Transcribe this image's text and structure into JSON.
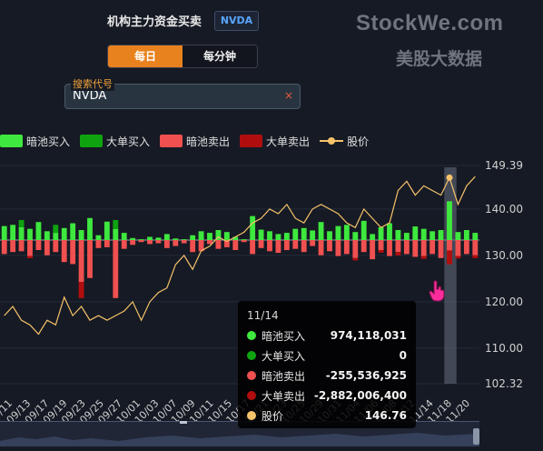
{
  "header": {
    "title": "机构主力资金买卖",
    "ticker": "NVDA"
  },
  "brand": {
    "name": "StockWe.com",
    "subtitle": "美股大数据"
  },
  "toggle": {
    "options": [
      {
        "label": "每日",
        "active": true
      },
      {
        "label": "每分钟",
        "active": false
      }
    ]
  },
  "search": {
    "label": "搜索代号",
    "value": "NVDA",
    "clear": "×"
  },
  "legend": [
    {
      "name": "暗池买入",
      "color": "#3ee83e"
    },
    {
      "name": "大单买入",
      "color": "#0fa40f"
    },
    {
      "name": "暗池卖出",
      "color": "#f05050"
    },
    {
      "name": "大单卖出",
      "color": "#b00e0e"
    },
    {
      "name": "股价",
      "color": "#f7c36a"
    }
  ],
  "colors": {
    "dark_buy": "#3ee83e",
    "block_buy": "#0fa40f",
    "dark_sell": "#f05050",
    "block_sell": "#b00e0e",
    "price": "#f7c36a",
    "highlight": "#6a7080"
  },
  "chart_data": {
    "type": "bar",
    "y_axis_ticks": [
      "149.39",
      "140.00",
      "130.00",
      "120.00",
      "110.00",
      "102.32"
    ],
    "y_axis_range": [
      102.32,
      149.39
    ],
    "x_tick_labels": [
      "09/11",
      "09/13",
      "09/17",
      "09/19",
      "09/23",
      "09/25",
      "09/27",
      "10/01",
      "10/03",
      "10/07",
      "10/09",
      "10/11",
      "10/15",
      "10/17",
      "10/21",
      "10/23",
      "10/25",
      "10/29",
      "10/31",
      "11/04",
      "11/06",
      "11/08",
      "11/12",
      "11/14",
      "11/18",
      "11/20"
    ],
    "highlighted": "11/14",
    "series": [
      {
        "name": "暗池买入",
        "values": [
          0.35,
          0.38,
          0.32,
          0.28,
          0.45,
          0.22,
          0.18,
          0.3,
          0.42,
          0.25,
          0.55,
          0.12,
          0.46,
          0.28,
          0.18,
          0.05,
          0.02,
          0.08,
          0.06,
          0.15,
          0.04,
          0.02,
          0.12,
          0.22,
          0.18,
          0.25,
          0.2,
          0.08,
          0.02,
          0.6,
          0.26,
          0.22,
          0.15,
          0.18,
          0.28,
          0.3,
          0.24,
          0.45,
          0.22,
          0.35,
          0.38,
          0.2,
          0.48,
          0.15,
          0.32,
          0.42,
          0.25,
          0.18,
          0.34,
          0.28,
          0.22,
          0.25,
          0.97,
          0.2,
          0.25,
          0.18
        ]
      },
      {
        "name": "大单买入",
        "values": [
          0.0,
          0.0,
          0.18,
          0.0,
          0.0,
          0.0,
          0.2,
          0.0,
          0.0,
          0.0,
          0.0,
          0.0,
          0.0,
          0.22,
          0.0,
          0.0,
          0.0,
          0.0,
          0.0,
          0.0,
          0.0,
          0.0,
          0.0,
          0.0,
          0.0,
          0.0,
          0.0,
          0.0,
          0.0,
          0.0,
          0.0,
          0.0,
          0.0,
          0.0,
          0.0,
          0.0,
          0.0,
          0.0,
          0.0,
          0.0,
          0.0,
          0.0,
          0.0,
          0.0,
          0.0,
          0.0,
          0.0,
          0.0,
          0.0,
          0.0,
          0.0,
          0.0,
          0.0,
          0.0,
          0.0,
          0.0
        ]
      },
      {
        "name": "暗池卖出",
        "values": [
          -0.35,
          -0.3,
          -0.28,
          -0.4,
          -0.25,
          -0.38,
          -0.3,
          -0.55,
          -0.6,
          -1.05,
          -0.95,
          -0.2,
          -0.18,
          -1.45,
          -0.22,
          -0.12,
          -0.05,
          -0.1,
          -0.08,
          -0.2,
          -0.15,
          -0.08,
          -0.3,
          -0.28,
          -0.1,
          -0.22,
          -0.18,
          -0.25,
          -0.05,
          -0.35,
          -0.2,
          -0.28,
          -0.32,
          -0.25,
          -0.22,
          -0.3,
          -0.15,
          -0.38,
          -0.28,
          -0.4,
          -0.35,
          -0.45,
          -0.3,
          -0.48,
          -0.25,
          -0.4,
          -0.3,
          -0.35,
          -0.42,
          -0.4,
          -0.35,
          -0.45,
          -0.26,
          -0.4,
          -0.35,
          -0.38
        ]
      },
      {
        "name": "大单卖出",
        "values": [
          0.0,
          0.0,
          0.0,
          -0.45,
          0.0,
          0.0,
          0.0,
          0.0,
          0.0,
          -3.35,
          0.0,
          0.0,
          0.0,
          0.0,
          0.0,
          0.0,
          0.0,
          0.0,
          0.0,
          0.0,
          0.0,
          0.0,
          0.0,
          0.0,
          0.0,
          0.0,
          0.0,
          0.0,
          0.0,
          0.0,
          0.0,
          0.0,
          0.0,
          0.0,
          0.0,
          0.0,
          0.0,
          0.0,
          0.0,
          0.0,
          0.0,
          -0.5,
          0.0,
          0.0,
          -0.55,
          0.0,
          -0.7,
          0.0,
          0.0,
          -0.6,
          0.0,
          0.0,
          -2.88,
          -0.5,
          0.0,
          -0.6
        ]
      },
      {
        "name": "股价",
        "values": [
          117,
          119,
          116,
          115,
          113,
          116,
          115,
          121,
          117,
          119,
          116,
          117,
          116,
          117,
          118,
          120,
          116,
          120,
          122,
          123,
          128,
          130,
          127,
          131,
          132,
          134,
          133,
          134,
          135,
          137,
          138,
          140,
          139,
          141,
          138,
          137,
          140,
          141,
          140,
          139,
          137,
          136,
          140,
          138,
          136,
          137,
          144,
          146,
          143,
          145,
          144,
          143,
          146.76,
          141,
          145,
          147
        ]
      }
    ]
  },
  "tooltip": {
    "date": "11/14",
    "rows": [
      {
        "name": "暗池买入",
        "value": "974,118,031",
        "color": "#3ee83e"
      },
      {
        "name": "大单买入",
        "value": "0",
        "color": "#0fa40f"
      },
      {
        "name": "暗池卖出",
        "value": "-255,536,925",
        "color": "#f05050"
      },
      {
        "name": "大单卖出",
        "value": "-2,882,006,400",
        "color": "#b00e0e"
      },
      {
        "name": "股价",
        "value": "146.76",
        "color": "#f7c36a"
      }
    ]
  }
}
